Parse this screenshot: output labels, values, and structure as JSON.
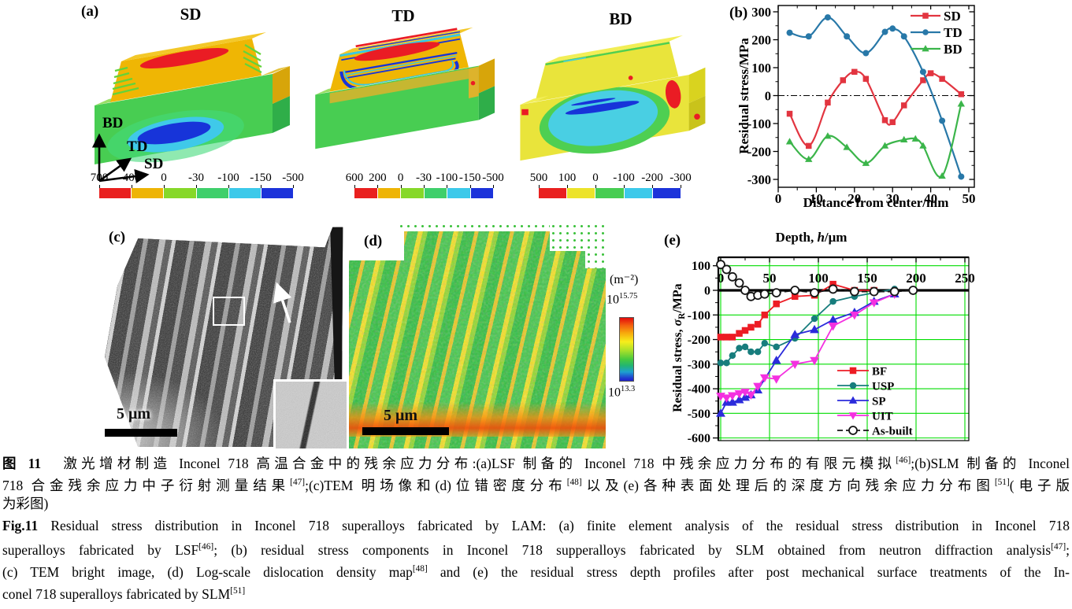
{
  "panels": {
    "a": {
      "label": "(a)",
      "block_titles": [
        "SD",
        "TD",
        "BD"
      ],
      "triad": {
        "up": "BD",
        "mid": "TD",
        "low": "SD"
      },
      "colorbars": [
        {
          "labels": [
            "700",
            "400",
            "0",
            "-30",
            "-100",
            "-150",
            "-500"
          ],
          "colors": [
            "#e9201f",
            "#eeb405",
            "#86d829",
            "#3fcf6b",
            "#3cc9ea",
            "#1c33da"
          ]
        },
        {
          "labels": [
            "600",
            "200",
            "0",
            "-30",
            "-100",
            "-150",
            "-500"
          ],
          "colors": [
            "#e9201f",
            "#eeb405",
            "#86d829",
            "#3fcf6b",
            "#3cc9ea",
            "#1c33da"
          ]
        },
        {
          "labels": [
            "500",
            "100",
            "0",
            "-100",
            "-200",
            "-300"
          ],
          "colors": [
            "#e9201f",
            "#ece32a",
            "#47cd52",
            "#3cc9ea",
            "#1c33da"
          ]
        }
      ]
    },
    "b": {
      "label": "(b)"
    },
    "c": {
      "label": "(c)",
      "scale_text": "5 μm"
    },
    "d": {
      "label": "(d)",
      "scale_text": "5 μm",
      "colorbar": {
        "unit": "(m⁻²)",
        "top_base": "10",
        "top_exp": "15.75",
        "bottom_base": "10",
        "bottom_exp": "13.3"
      }
    },
    "e": {
      "label": "(e)"
    }
  },
  "chart_data": [
    {
      "id": "b",
      "type": "line",
      "xlabel": "Distance from center/mm",
      "ylabel": "Residual stress/MPa",
      "xlim": [
        0,
        51.5
      ],
      "ylim": [
        -328,
        322
      ],
      "xticks": [
        0,
        10,
        20,
        30,
        40,
        50
      ],
      "yticks": [
        300,
        200,
        100,
        0,
        -100,
        -200,
        -300
      ],
      "grid": false,
      "zero_line": "dash-dot",
      "legend_position": "top-right",
      "series": [
        {
          "name": "SD",
          "color": "#e23540",
          "marker": "square",
          "smooth": true,
          "x": [
            3,
            8,
            13,
            17,
            20,
            23,
            28,
            30,
            33,
            38,
            40,
            43,
            48
          ],
          "y": [
            -65,
            -180,
            -25,
            55,
            85,
            60,
            -88,
            -95,
            -35,
            55,
            80,
            60,
            5
          ]
        },
        {
          "name": "TD",
          "color": "#2878a8",
          "marker": "circle",
          "smooth": true,
          "x": [
            3,
            8,
            13,
            18,
            23,
            28,
            30,
            33,
            38,
            43,
            48
          ],
          "y": [
            225,
            212,
            280,
            212,
            152,
            228,
            240,
            212,
            85,
            -90,
            -290
          ]
        },
        {
          "name": "BD",
          "color": "#3bb54a",
          "marker": "triangle-up",
          "smooth": true,
          "x": [
            3,
            8,
            13,
            18,
            23,
            28,
            33,
            36,
            38,
            43,
            48
          ],
          "y": [
            -165,
            -228,
            -145,
            -185,
            -242,
            -180,
            -158,
            -155,
            -180,
            -288,
            -30
          ]
        }
      ]
    },
    {
      "id": "e",
      "type": "line",
      "title_parts": {
        "pre": "Depth, ",
        "italic": "h",
        "post": "/μm"
      },
      "ylabel_parts": {
        "pre": "Residual stress, ",
        "sym": "σ",
        "sub": "R",
        "post": "/MPa"
      },
      "xlim": [
        0,
        250
      ],
      "ylim": [
        -600,
        135
      ],
      "xticks": [
        0,
        50,
        100,
        150,
        200,
        250
      ],
      "yticks": [
        100,
        0,
        -100,
        -200,
        -300,
        -400,
        -500,
        -600
      ],
      "grid": true,
      "grid_color": "#00dd00",
      "legend_position": "bottom-right",
      "series": [
        {
          "name": "BF",
          "color": "#ed1c24",
          "marker": "square",
          "x": [
            0,
            6,
            12,
            19,
            25,
            31,
            38,
            45,
            57,
            76,
            96,
            115,
            137,
            157
          ],
          "y": [
            -190,
            -190,
            -190,
            -175,
            -163,
            -150,
            -138,
            -100,
            -55,
            -25,
            -20,
            25,
            0,
            0
          ]
        },
        {
          "name": "USP",
          "color": "#177d7d",
          "marker": "circle",
          "x": [
            0,
            6,
            12,
            19,
            25,
            31,
            38,
            45,
            57,
            76,
            96,
            115,
            137,
            178
          ],
          "y": [
            -295,
            -295,
            -265,
            -235,
            -230,
            -250,
            -250,
            -215,
            -230,
            -195,
            -115,
            -45,
            -25,
            5
          ]
        },
        {
          "name": "SP",
          "color": "#2b2bdb",
          "marker": "triangle-up",
          "x": [
            0,
            6,
            12,
            19,
            25,
            31,
            38,
            57,
            76,
            96,
            115,
            137,
            157,
            178
          ],
          "y": [
            -500,
            -455,
            -455,
            -445,
            -435,
            -425,
            -405,
            -285,
            -180,
            -160,
            -120,
            -90,
            -45,
            -15
          ]
        },
        {
          "name": "UIT",
          "color": "#f430e0",
          "marker": "triangle-down",
          "x": [
            0,
            6,
            12,
            19,
            25,
            31,
            38,
            45,
            57,
            76,
            96,
            115,
            137,
            157,
            178
          ],
          "y": [
            -430,
            -437,
            -428,
            -420,
            -413,
            -425,
            -390,
            -355,
            -360,
            -300,
            -285,
            -145,
            -100,
            -50,
            -15
          ]
        },
        {
          "name": "As-built",
          "color": "#151515",
          "marker": "open-circle",
          "dashed": true,
          "x": [
            0,
            6,
            12,
            19,
            25,
            31,
            38,
            45,
            57,
            76,
            96,
            115,
            137,
            157,
            178,
            197
          ],
          "y": [
            105,
            85,
            55,
            30,
            0,
            -25,
            -20,
            -15,
            -10,
            0,
            -10,
            5,
            -5,
            -5,
            -5,
            0
          ]
        }
      ]
    }
  ],
  "caption": {
    "zh": [
      {
        "just": true,
        "segs": [
          {
            "t": "图 11",
            "b": true
          },
          {
            "t": "　激光增材制造 Inconel 718 高温合金中的残余应力分布:(a)LSF 制备的 Inconel 718 中残余应力分布的有限元模拟"
          },
          {
            "t": "[46]",
            "sup": true
          },
          {
            "t": ";(b)SLM 制备的 Inconel"
          }
        ]
      },
      {
        "just": true,
        "segs": [
          {
            "t": "718 合金残余应力中子衍射测量结果"
          },
          {
            "t": "[47]",
            "sup": true
          },
          {
            "t": ";(c)TEM 明场像和(d)位错密度分布"
          },
          {
            "t": "[48]",
            "sup": true
          },
          {
            "t": "以及(e)各种表面处理后的深度方向残余应力分布图"
          },
          {
            "t": "[51]",
            "sup": true
          },
          {
            "t": "(电子版"
          }
        ]
      },
      {
        "just": false,
        "segs": [
          {
            "t": "为彩图)"
          }
        ]
      }
    ],
    "en": [
      {
        "just": true,
        "segs": [
          {
            "t": "Fig.11",
            "b": true
          },
          {
            "t": "  Residual stress distribution in Inconel 718 superalloys fabricated by LAM: (a) finite element analysis of the residual stress distribution in Inconel 718"
          }
        ]
      },
      {
        "just": true,
        "segs": [
          {
            "t": "superalloys fabricated by LSF"
          },
          {
            "t": "[46]",
            "sup": true
          },
          {
            "t": "; (b) residual stress components in Inconel 718 supperalloys fabricated by SLM obtained from neutron diffraction analysis"
          },
          {
            "t": "[47]",
            "sup": true
          },
          {
            "t": ";"
          }
        ]
      },
      {
        "just": true,
        "segs": [
          {
            "t": "(c) TEM bright image, (d) Log-scale dislocation density map"
          },
          {
            "t": "[48]",
            "sup": true
          },
          {
            "t": " and (e) the residual stress depth profiles after post mechanical surface treatments of the In-"
          }
        ]
      },
      {
        "just": false,
        "segs": [
          {
            "t": "conel 718 superalloys fabricated by SLM"
          },
          {
            "t": "[51]",
            "sup": true
          }
        ]
      }
    ]
  }
}
